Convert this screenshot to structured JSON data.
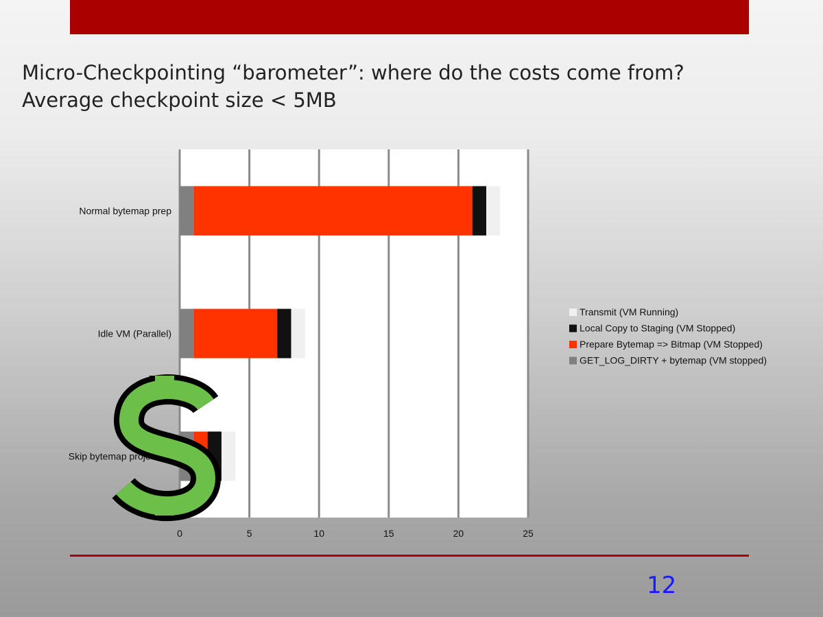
{
  "slide": {
    "title_line1": "Micro-Checkpointing “barometer”: where do the costs come from?",
    "title_line2": "Average checkpoint size < 5MB",
    "page_number": "12",
    "decoration_icon": "dollar-sign-icon",
    "accent_color": "#aa0000",
    "page_number_color": "#1a1aff"
  },
  "chart_data": {
    "type": "bar",
    "orientation": "horizontal",
    "stacked": true,
    "categories": [
      "Normal bytemap prep",
      "Idle VM (Parallel)",
      "Skip bytemap projected:"
    ],
    "series": [
      {
        "name": "GET_LOG_DIRTY + bytemap (VM stopped)",
        "color": "#808080",
        "values": [
          1,
          1,
          1
        ]
      },
      {
        "name": "Prepare Bytemap => Bitmap (VM Stopped)",
        "color": "#ff3300",
        "values": [
          20,
          6,
          1
        ]
      },
      {
        "name": "Local Copy to Staging (VM Stopped)",
        "color": "#111111",
        "values": [
          1,
          1,
          1
        ]
      },
      {
        "name": "Transmit (VM Running)",
        "color": "#f0f0f0",
        "values": [
          1,
          1,
          1
        ]
      }
    ],
    "xlim": [
      0,
      25
    ],
    "xticks": [
      "0",
      "5",
      "10",
      "15",
      "20",
      "25"
    ],
    "grid": true,
    "legend_placement": "right",
    "legend_order": [
      "Transmit (VM Running)",
      "Local Copy to Staging (VM Stopped)",
      "Prepare Bytemap => Bitmap (VM Stopped)",
      "GET_LOG_DIRTY + bytemap (VM stopped)"
    ]
  }
}
